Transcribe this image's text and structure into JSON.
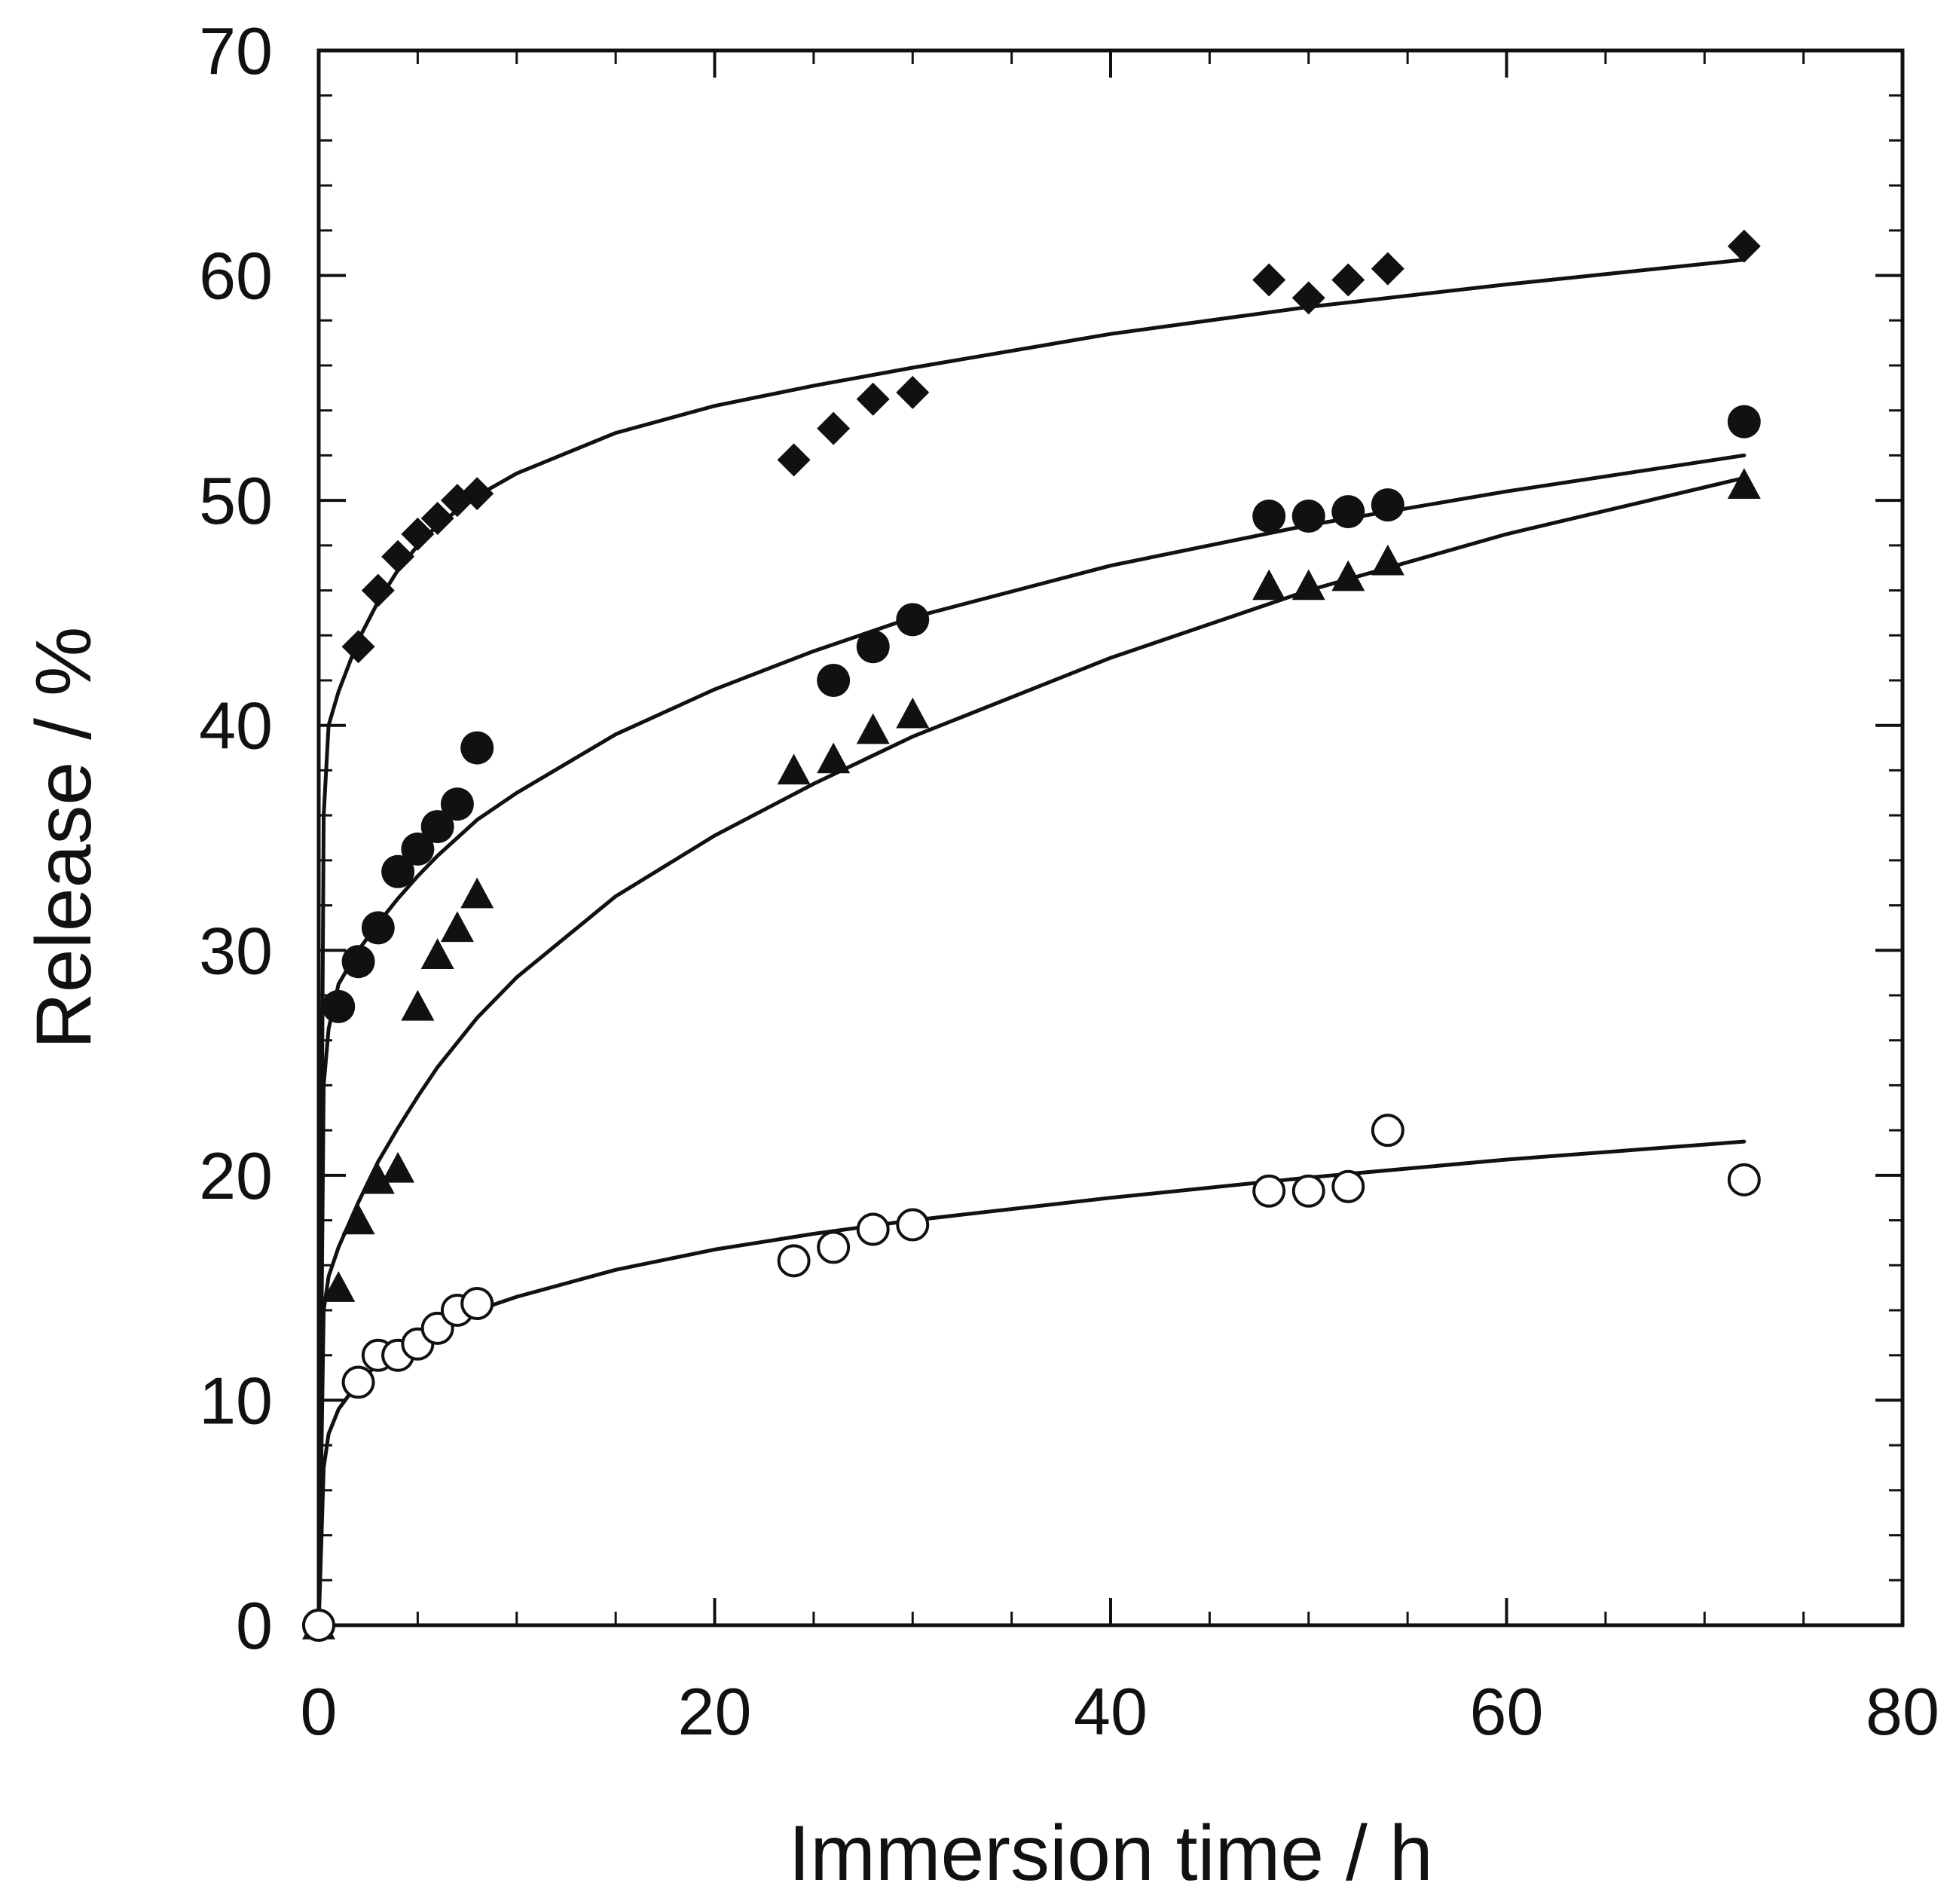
{
  "chart_data": {
    "type": "scatter",
    "title": "",
    "xlabel": "Immersion time / h",
    "ylabel": "Release / %",
    "xlim": [
      0,
      80
    ],
    "ylim": [
      0,
      70
    ],
    "xticks": [
      0,
      20,
      40,
      60,
      80
    ],
    "yticks": [
      0,
      10,
      20,
      30,
      40,
      50,
      60,
      70
    ],
    "x_minor_step": 5,
    "y_minor_step": 2,
    "grid": false,
    "legend": "none",
    "series": [
      {
        "name": "filled diamond",
        "marker": "diamond-filled",
        "x": [
          0,
          2,
          3,
          4,
          5,
          6,
          7,
          8,
          24,
          26,
          28,
          30,
          48,
          50,
          52,
          54,
          72
        ],
        "y": [
          0,
          43.5,
          46,
          47.5,
          48.5,
          49.2,
          50,
          50.3,
          51.8,
          53.2,
          54.5,
          54.8,
          59.8,
          59,
          59.8,
          60.3,
          61.3
        ],
        "fit": {
          "x": [
            0,
            0.25,
            0.5,
            1,
            2,
            3,
            4,
            5,
            6,
            8,
            10,
            15,
            20,
            25,
            30,
            40,
            50,
            60,
            72
          ],
          "y": [
            0,
            36,
            40,
            41.5,
            43.8,
            45.5,
            46.9,
            48,
            48.9,
            50.2,
            51.2,
            53,
            54.2,
            55.1,
            55.9,
            57.4,
            58.6,
            59.6,
            60.7
          ]
        }
      },
      {
        "name": "filled circle",
        "marker": "circle-filled",
        "x": [
          0,
          1,
          2,
          3,
          4,
          5,
          6,
          7,
          8,
          26,
          28,
          30,
          48,
          50,
          52,
          54,
          72
        ],
        "y": [
          0,
          27.5,
          29.5,
          31,
          33.5,
          34.5,
          35.5,
          36.5,
          39,
          42,
          43.5,
          44.7,
          49.3,
          49.3,
          49.5,
          49.8,
          53.5
        ],
        "fit": {
          "x": [
            0,
            0.25,
            0.5,
            1,
            2,
            3,
            4,
            5,
            6,
            8,
            10,
            15,
            20,
            25,
            30,
            40,
            50,
            60,
            72
          ],
          "y": [
            0,
            24,
            26.5,
            28.5,
            30,
            31.2,
            32.3,
            33.3,
            34.2,
            35.8,
            37,
            39.6,
            41.6,
            43.3,
            44.8,
            47.1,
            48.9,
            50.4,
            52
          ]
        }
      },
      {
        "name": "filled triangle",
        "marker": "triangle-filled",
        "x": [
          0,
          1,
          2,
          3,
          4,
          5,
          6,
          7,
          8,
          24,
          26,
          28,
          30,
          48,
          50,
          52,
          54,
          72
        ],
        "y": [
          0,
          15,
          18,
          19.8,
          20.3,
          27.5,
          29.8,
          31,
          32.5,
          38,
          38.5,
          39.8,
          40.5,
          46.2,
          46.2,
          46.6,
          47.3,
          50.7
        ],
        "fit": {
          "x": [
            0,
            0.25,
            0.5,
            1,
            2,
            3,
            4,
            5,
            6,
            8,
            10,
            15,
            20,
            25,
            30,
            40,
            50,
            60,
            72
          ],
          "y": [
            0,
            14,
            15.5,
            16.8,
            18.8,
            20.6,
            22.1,
            23.5,
            24.8,
            27,
            28.8,
            32.4,
            35.1,
            37.4,
            39.5,
            43,
            46,
            48.5,
            51
          ]
        }
      },
      {
        "name": "open circle",
        "marker": "circle-open",
        "x": [
          0,
          2,
          3,
          4,
          5,
          6,
          7,
          8,
          24,
          26,
          28,
          30,
          48,
          50,
          52,
          54,
          72
        ],
        "y": [
          0,
          10.8,
          12,
          12,
          12.5,
          13.2,
          14,
          14.3,
          16.2,
          16.8,
          17.6,
          17.8,
          19.3,
          19.3,
          19.5,
          22,
          19.8
        ],
        "fit": {
          "x": [
            0,
            0.25,
            0.5,
            1,
            2,
            3,
            4,
            5,
            6,
            8,
            10,
            15,
            20,
            25,
            30,
            40,
            50,
            60,
            72
          ],
          "y": [
            0,
            7,
            8.5,
            9.6,
            10.8,
            11.6,
            12.2,
            12.8,
            13.3,
            14,
            14.6,
            15.8,
            16.7,
            17.4,
            18,
            19,
            19.9,
            20.7,
            21.5
          ]
        }
      }
    ]
  }
}
